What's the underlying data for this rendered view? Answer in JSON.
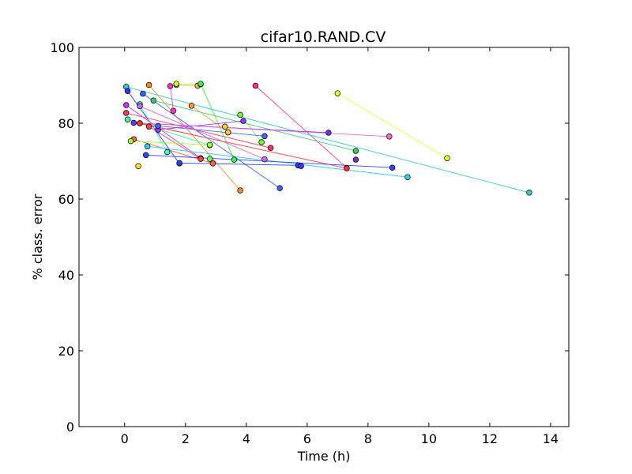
{
  "chart_data": {
    "type": "scatter",
    "title": "cifar10.RAND.CV",
    "xlabel": "Time (h)",
    "ylabel": "% class. error",
    "xlim": [
      -1.5,
      14.6
    ],
    "ylim": [
      0,
      100
    ],
    "xticks": [
      0,
      2,
      4,
      6,
      8,
      10,
      12,
      14
    ],
    "yticks": [
      0,
      20,
      40,
      60,
      80,
      100
    ],
    "grid": false,
    "legend": "none",
    "connected_segments": true,
    "series": [
      {
        "color": "#ff8c1a",
        "points": [
          [
            0.8,
            90.1
          ],
          [
            3.8,
            62.3
          ]
        ]
      },
      {
        "color": "#ffb347",
        "points": [
          [
            1.7,
            90.1
          ],
          [
            2.4,
            89.9
          ]
        ]
      },
      {
        "color": "#c8ff1a",
        "points": [
          [
            1.7,
            90.4
          ],
          [
            2.5,
            90.3
          ]
        ]
      },
      {
        "color": "#33ff33",
        "points": [
          [
            2.5,
            90.4
          ],
          [
            3.6,
            70.4
          ]
        ]
      },
      {
        "color": "#ff33cc",
        "points": [
          [
            1.5,
            89.8
          ],
          [
            1.6,
            83.3
          ]
        ]
      },
      {
        "color": "#ff3399",
        "points": [
          [
            4.3,
            89.9
          ],
          [
            7.3,
            68.2
          ]
        ]
      },
      {
        "color": "#33cccc",
        "points": [
          [
            0.05,
            89.6
          ],
          [
            13.3,
            61.7
          ]
        ]
      },
      {
        "color": "#3333ff",
        "points": [
          [
            0.1,
            88.5
          ],
          [
            1.8,
            69.4
          ]
        ]
      },
      {
        "color": "#3366ff",
        "points": [
          [
            0.6,
            87.8
          ],
          [
            5.1,
            62.9
          ]
        ]
      },
      {
        "color": "#e6ff33",
        "points": [
          [
            7.0,
            87.9
          ],
          [
            10.6,
            70.8
          ]
        ]
      },
      {
        "color": "#33cc66",
        "points": [
          [
            0.95,
            86.0
          ],
          [
            7.6,
            72.7
          ]
        ]
      },
      {
        "color": "#33ffcc",
        "points": [
          [
            0.5,
            85.0
          ],
          [
            1.4,
            72.4
          ]
        ]
      },
      {
        "color": "#cc66ff",
        "points": [
          [
            0.5,
            84.5
          ],
          [
            4.6,
            70.5
          ]
        ]
      },
      {
        "color": "#ff9933",
        "points": [
          [
            2.2,
            84.6
          ],
          [
            3.4,
            77.6
          ]
        ]
      },
      {
        "color": "#cc33ff",
        "points": [
          [
            0.05,
            84.8
          ],
          [
            2.5,
            70.8
          ]
        ]
      },
      {
        "color": "#66ff33",
        "points": [
          [
            3.8,
            82.2
          ],
          [
            4.5,
            75.0
          ]
        ]
      },
      {
        "color": "#ff3366",
        "points": [
          [
            0.05,
            82.7
          ],
          [
            4.8,
            73.5
          ]
        ]
      },
      {
        "color": "#33ff99",
        "points": [
          [
            0.1,
            81.0
          ],
          [
            2.8,
            74.2
          ]
        ]
      },
      {
        "color": "#6633ff",
        "points": [
          [
            0.3,
            80.1
          ],
          [
            6.7,
            77.5
          ]
        ]
      },
      {
        "color": "#9933ff",
        "points": [
          [
            1.1,
            78.3
          ],
          [
            3.9,
            80.6
          ]
        ]
      },
      {
        "color": "#ff66cc",
        "points": [
          [
            0.5,
            80.0
          ],
          [
            8.7,
            76.5
          ]
        ]
      },
      {
        "color": "#ff6633",
        "points": [
          [
            0.3,
            75.8
          ],
          [
            2.9,
            69.4
          ]
        ]
      },
      {
        "color": "#4466ff",
        "points": [
          [
            1.1,
            79.3
          ],
          [
            4.6,
            76.6
          ]
        ]
      },
      {
        "color": "#ffcc33",
        "points": [
          [
            3.3,
            79.1
          ],
          [
            3.4,
            77.6
          ]
        ]
      },
      {
        "color": "#ff4444",
        "points": [
          [
            0.8,
            79.1
          ],
          [
            2.5,
            70.6
          ]
        ]
      },
      {
        "color": "#99ff33",
        "points": [
          [
            0.2,
            75.3
          ],
          [
            2.8,
            74.3
          ]
        ]
      },
      {
        "color": "#33ccff",
        "points": [
          [
            0.75,
            73.9
          ],
          [
            9.3,
            65.8
          ]
        ]
      },
      {
        "color": "#ff3333",
        "points": [
          [
            0.5,
            80.0
          ],
          [
            7.3,
            68.1
          ]
        ]
      },
      {
        "color": "#ffdd33",
        "points": [
          [
            0.45,
            68.7
          ]
        ]
      },
      {
        "color": "#3344ff",
        "points": [
          [
            0.7,
            71.6
          ],
          [
            8.8,
            68.3
          ]
        ]
      },
      {
        "color": "#2244ff",
        "points": [
          [
            1.8,
            69.5
          ],
          [
            5.7,
            68.9
          ]
        ]
      },
      {
        "color": "#4433ff",
        "points": [
          [
            5.8,
            68.7
          ]
        ]
      },
      {
        "color": "#6633cc",
        "points": [
          [
            7.6,
            70.4
          ]
        ]
      },
      {
        "color": "#66ff66",
        "points": [
          [
            2.8,
            70.6
          ]
        ]
      }
    ]
  }
}
